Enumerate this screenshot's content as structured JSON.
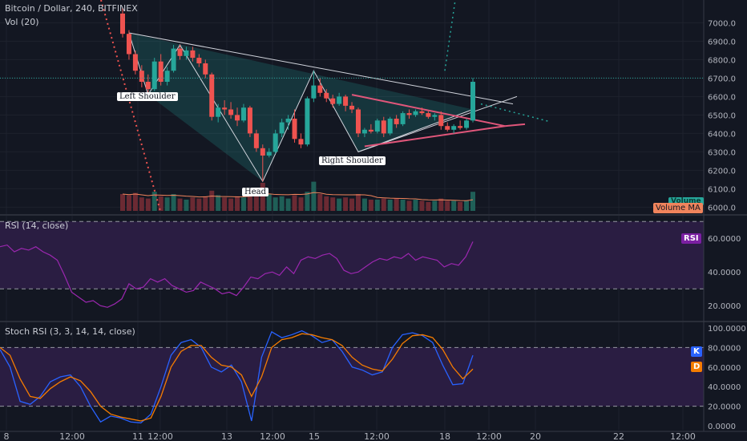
{
  "header": {
    "title": "Bitcoin / Dollar, 240, BITFINEX",
    "volume_label": "Vol (20)",
    "volume_tag": "Volume",
    "volume_ma_tag": "Volume MA"
  },
  "annotations": {
    "left_shoulder": "Left Shoulder",
    "head": "Head",
    "right_shoulder": "Right Shoulder"
  },
  "rsi": {
    "title": "RSI (14, close)",
    "tag": "RSI"
  },
  "stoch": {
    "title": "Stoch RSI (3, 3, 14, 14, close)",
    "k_tag": "K",
    "d_tag": "D"
  },
  "x_axis": {
    "labels": [
      "8",
      "12:00",
      "11",
      "12:00",
      "13",
      "12:00",
      "15",
      "12:00",
      "18",
      "12:00",
      "20",
      "22",
      "12:00"
    ]
  },
  "colors": {
    "bg": "#131722",
    "up": "#26a69a",
    "down": "#ef5350",
    "pane": "#2a1d42",
    "rsi": "#9c27b0",
    "k": "#2962ff",
    "d": "#f57c00",
    "wedge": "#e0567a",
    "neck": "#26a69a"
  },
  "chart_data": [
    {
      "type": "candlestick",
      "title": "Bitcoin / Dollar, 240, BITFINEX",
      "y_ticks": [
        "7000.0",
        "6900.0",
        "6800.0",
        "6700.0",
        "6600.0",
        "6500.0",
        "6400.0",
        "6300.0",
        "6200.0",
        "6100.0",
        "6000.0"
      ],
      "ylim": [
        5980,
        7080
      ],
      "candles": [
        {
          "o": 7050,
          "h": 7080,
          "l": 6920,
          "c": 6940
        },
        {
          "o": 6940,
          "h": 6960,
          "l": 6800,
          "c": 6830
        },
        {
          "o": 6830,
          "h": 6850,
          "l": 6720,
          "c": 6740
        },
        {
          "o": 6740,
          "h": 6770,
          "l": 6650,
          "c": 6680
        },
        {
          "o": 6680,
          "h": 6720,
          "l": 6620,
          "c": 6640
        },
        {
          "o": 6640,
          "h": 6810,
          "l": 6630,
          "c": 6790
        },
        {
          "o": 6790,
          "h": 6830,
          "l": 6660,
          "c": 6680
        },
        {
          "o": 6680,
          "h": 6760,
          "l": 6660,
          "c": 6740
        },
        {
          "o": 6740,
          "h": 6880,
          "l": 6730,
          "c": 6860
        },
        {
          "o": 6860,
          "h": 6880,
          "l": 6800,
          "c": 6820
        },
        {
          "o": 6820,
          "h": 6870,
          "l": 6800,
          "c": 6850
        },
        {
          "o": 6850,
          "h": 6870,
          "l": 6790,
          "c": 6810
        },
        {
          "o": 6810,
          "h": 6830,
          "l": 6760,
          "c": 6780
        },
        {
          "o": 6780,
          "h": 6800,
          "l": 6700,
          "c": 6720
        },
        {
          "o": 6720,
          "h": 6730,
          "l": 6470,
          "c": 6490
        },
        {
          "o": 6490,
          "h": 6560,
          "l": 6460,
          "c": 6540
        },
        {
          "o": 6540,
          "h": 6580,
          "l": 6500,
          "c": 6530
        },
        {
          "o": 6530,
          "h": 6570,
          "l": 6480,
          "c": 6500
        },
        {
          "o": 6500,
          "h": 6540,
          "l": 6440,
          "c": 6470
        },
        {
          "o": 6470,
          "h": 6560,
          "l": 6460,
          "c": 6540
        },
        {
          "o": 6540,
          "h": 6550,
          "l": 6380,
          "c": 6400
        },
        {
          "o": 6400,
          "h": 6420,
          "l": 6300,
          "c": 6320
        },
        {
          "o": 6320,
          "h": 6340,
          "l": 6140,
          "c": 6280
        },
        {
          "o": 6280,
          "h": 6320,
          "l": 6270,
          "c": 6300
        },
        {
          "o": 6300,
          "h": 6420,
          "l": 6290,
          "c": 6400
        },
        {
          "o": 6400,
          "h": 6480,
          "l": 6380,
          "c": 6460
        },
        {
          "o": 6460,
          "h": 6500,
          "l": 6420,
          "c": 6480
        },
        {
          "o": 6480,
          "h": 6530,
          "l": 6350,
          "c": 6370
        },
        {
          "o": 6370,
          "h": 6400,
          "l": 6320,
          "c": 6340
        },
        {
          "o": 6340,
          "h": 6600,
          "l": 6330,
          "c": 6590
        },
        {
          "o": 6590,
          "h": 6740,
          "l": 6570,
          "c": 6660
        },
        {
          "o": 6660,
          "h": 6700,
          "l": 6600,
          "c": 6620
        },
        {
          "o": 6620,
          "h": 6640,
          "l": 6570,
          "c": 6590
        },
        {
          "o": 6590,
          "h": 6610,
          "l": 6540,
          "c": 6560
        },
        {
          "o": 6560,
          "h": 6620,
          "l": 6550,
          "c": 6600
        },
        {
          "o": 6600,
          "h": 6610,
          "l": 6520,
          "c": 6550
        },
        {
          "o": 6550,
          "h": 6570,
          "l": 6510,
          "c": 6530
        },
        {
          "o": 6530,
          "h": 6540,
          "l": 6380,
          "c": 6400
        },
        {
          "o": 6400,
          "h": 6430,
          "l": 6380,
          "c": 6420
        },
        {
          "o": 6420,
          "h": 6450,
          "l": 6400,
          "c": 6410
        },
        {
          "o": 6410,
          "h": 6480,
          "l": 6400,
          "c": 6470
        },
        {
          "o": 6470,
          "h": 6490,
          "l": 6380,
          "c": 6400
        },
        {
          "o": 6400,
          "h": 6490,
          "l": 6390,
          "c": 6480
        },
        {
          "o": 6480,
          "h": 6500,
          "l": 6430,
          "c": 6450
        },
        {
          "o": 6450,
          "h": 6520,
          "l": 6440,
          "c": 6510
        },
        {
          "o": 6510,
          "h": 6530,
          "l": 6480,
          "c": 6500
        },
        {
          "o": 6500,
          "h": 6530,
          "l": 6490,
          "c": 6520
        },
        {
          "o": 6520,
          "h": 6540,
          "l": 6500,
          "c": 6510
        },
        {
          "o": 6510,
          "h": 6520,
          "l": 6480,
          "c": 6490
        },
        {
          "o": 6490,
          "h": 6510,
          "l": 6470,
          "c": 6500
        },
        {
          "o": 6500,
          "h": 6520,
          "l": 6420,
          "c": 6440
        },
        {
          "o": 6440,
          "h": 6460,
          "l": 6410,
          "c": 6420
        },
        {
          "o": 6420,
          "h": 6450,
          "l": 6400,
          "c": 6440
        },
        {
          "o": 6440,
          "h": 6470,
          "l": 6420,
          "c": 6430
        },
        {
          "o": 6430,
          "h": 6480,
          "l": 6420,
          "c": 6470
        },
        {
          "o": 6470,
          "h": 6700,
          "l": 6460,
          "c": 6680
        }
      ],
      "volume": [
        150,
        140,
        160,
        120,
        110,
        170,
        130,
        120,
        150,
        110,
        100,
        120,
        110,
        130,
        180,
        140,
        120,
        110,
        130,
        120,
        140,
        180,
        250,
        150,
        120,
        130,
        110,
        140,
        120,
        170,
        260,
        150,
        130,
        120,
        110,
        120,
        110,
        150,
        110,
        100,
        100,
        110,
        100,
        110,
        100,
        90,
        100,
        90,
        80,
        90,
        110,
        90,
        90,
        80,
        90,
        170
      ],
      "current_price_tag": "6700.0"
    },
    {
      "type": "line",
      "title": "RSI (14, close)",
      "y_ticks": [
        "60.0000",
        "40.0000",
        "20.0000"
      ],
      "ylim": [
        12,
        72
      ],
      "bands": [
        70,
        30
      ],
      "series": [
        {
          "name": "RSI",
          "values": [
            55,
            56,
            52,
            54,
            53,
            55,
            52,
            50,
            47,
            38,
            28,
            25,
            22,
            23,
            20,
            19,
            21,
            24,
            33,
            30,
            31,
            36,
            34,
            36,
            32,
            30,
            28,
            29,
            34,
            32,
            30,
            27,
            28,
            26,
            31,
            37,
            36,
            39,
            40,
            38,
            43,
            39,
            47,
            49,
            48,
            50,
            51,
            48,
            41,
            39,
            40,
            43,
            46,
            48,
            47,
            49,
            48,
            51,
            47,
            49,
            48,
            47,
            43,
            45,
            44,
            49,
            58
          ]
        }
      ]
    },
    {
      "type": "line",
      "title": "Stoch RSI (3, 3, 14, 14, close)",
      "y_ticks": [
        "100.0000",
        "80.0000",
        "60.0000",
        "40.0000",
        "20.0000",
        "0.0000"
      ],
      "ylim": [
        -4,
        104
      ],
      "bands": [
        80,
        20
      ],
      "series": [
        {
          "name": "K",
          "values": [
            78,
            60,
            25,
            22,
            30,
            45,
            50,
            52,
            40,
            20,
            4,
            10,
            8,
            4,
            3,
            12,
            40,
            72,
            85,
            88,
            80,
            60,
            55,
            62,
            45,
            5,
            70,
            96,
            90,
            93,
            97,
            92,
            85,
            88,
            76,
            60,
            57,
            52,
            55,
            80,
            93,
            95,
            92,
            85,
            62,
            42,
            43,
            72
          ]
        },
        {
          "name": "D",
          "values": [
            80,
            72,
            48,
            30,
            28,
            38,
            45,
            50,
            46,
            35,
            20,
            12,
            9,
            7,
            5,
            8,
            30,
            60,
            76,
            82,
            82,
            70,
            62,
            60,
            52,
            30,
            50,
            80,
            88,
            90,
            94,
            93,
            90,
            88,
            82,
            70,
            62,
            58,
            56,
            68,
            84,
            92,
            93,
            90,
            78,
            60,
            48,
            58
          ]
        }
      ]
    }
  ]
}
